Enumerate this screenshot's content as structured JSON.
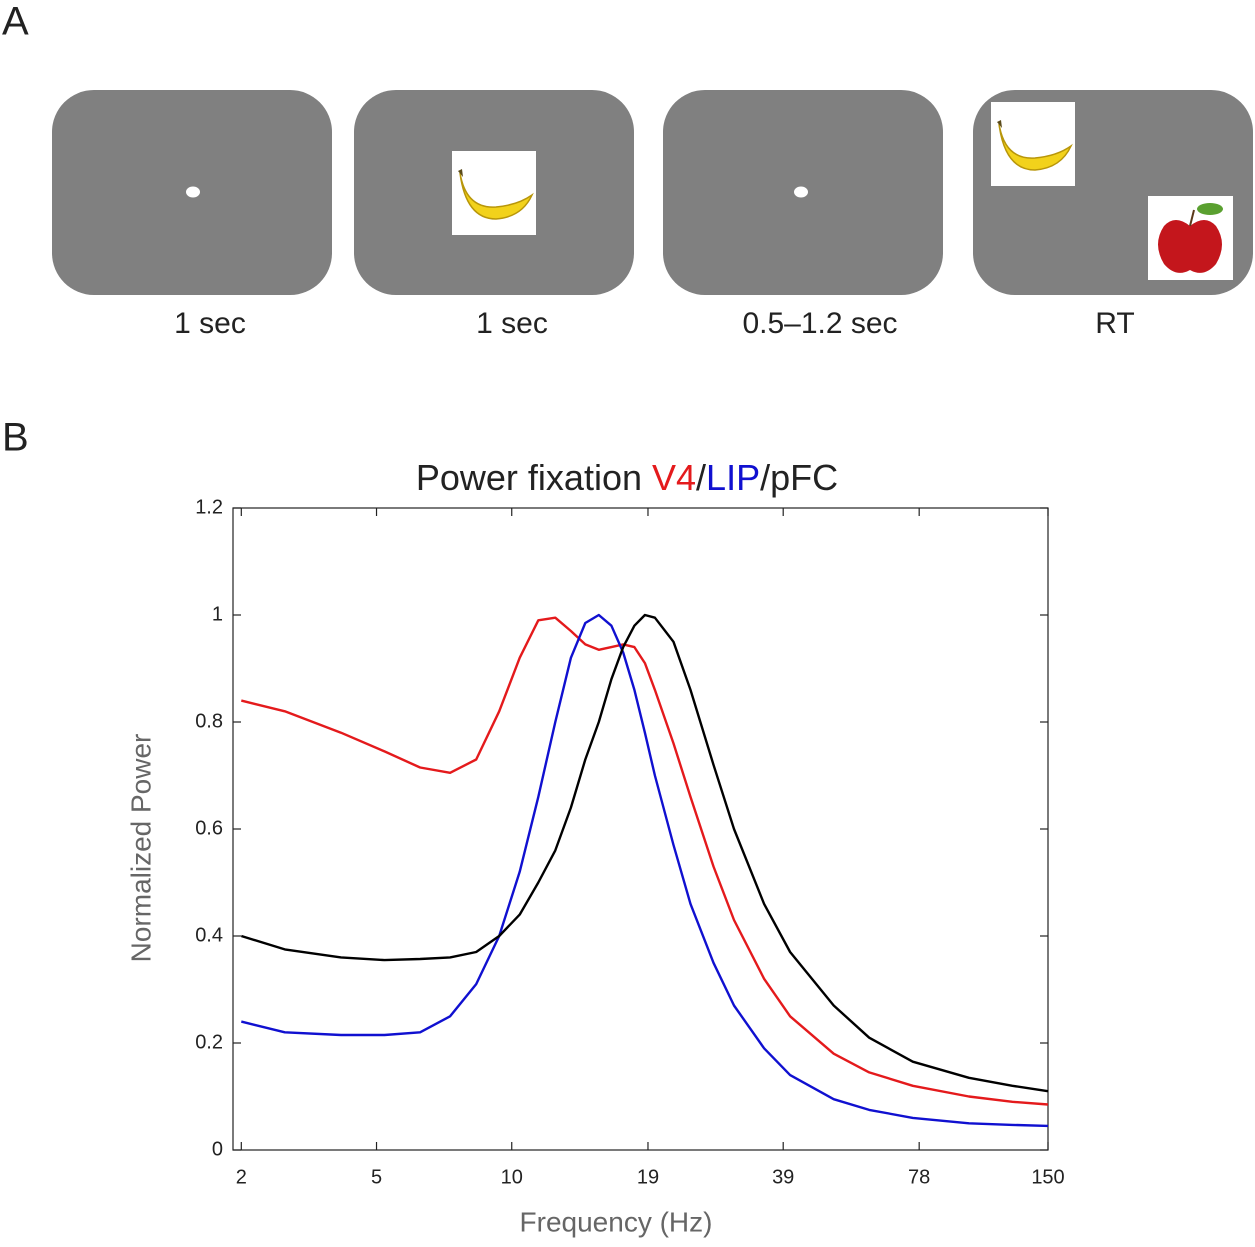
{
  "panel_a": {
    "label": "A",
    "screens": [
      {
        "duration": "1 sec"
      },
      {
        "duration": "1 sec"
      },
      {
        "duration": "0.5–1.2 sec"
      },
      {
        "duration": "RT"
      }
    ]
  },
  "panel_b_label": "B",
  "chart_data": {
    "type": "line",
    "title_parts": [
      {
        "text": "Power fixation",
        "color": "#222222"
      },
      {
        "text": "V4",
        "color": "#e41a1c"
      },
      {
        "text": "/",
        "color": "#222222"
      },
      {
        "text": "LIP",
        "color": "#1010d0"
      },
      {
        "text": "/pFC",
        "color": "#222222"
      }
    ],
    "xlabel": "Frequency (Hz)",
    "ylabel": "Normalized Power",
    "xscale": "log",
    "xlim": [
      2.3,
      150
    ],
    "ylim": [
      0,
      1.2
    ],
    "xticks": [
      {
        "value": 2.4,
        "label": "2"
      },
      {
        "value": 4.8,
        "label": "5"
      },
      {
        "value": 9.6,
        "label": "10"
      },
      {
        "value": 19.3,
        "label": "19"
      },
      {
        "value": 38.6,
        "label": "39"
      },
      {
        "value": 77.5,
        "label": "78"
      },
      150
    ],
    "yticks": [
      0,
      0.2,
      0.4,
      0.6,
      0.8,
      1,
      1.2
    ],
    "x": [
      2.4,
      3,
      4,
      5,
      6,
      7,
      8,
      9,
      10,
      11,
      12,
      13,
      14,
      15,
      16,
      17,
      18,
      19,
      20,
      22,
      24,
      27,
      30,
      35,
      40,
      50,
      60,
      75,
      100,
      125,
      150
    ],
    "series": [
      {
        "color": "#e41a1c",
        "values": [
          0.84,
          0.82,
          0.78,
          0.745,
          0.715,
          0.705,
          0.73,
          0.82,
          0.92,
          0.99,
          0.995,
          0.97,
          0.945,
          0.935,
          0.94,
          0.945,
          0.94,
          0.91,
          0.86,
          0.76,
          0.66,
          0.53,
          0.43,
          0.32,
          0.25,
          0.18,
          0.145,
          0.12,
          0.1,
          0.09,
          0.085
        ]
      },
      {
        "color": "#1010d0",
        "values": [
          0.24,
          0.22,
          0.215,
          0.215,
          0.22,
          0.25,
          0.31,
          0.4,
          0.52,
          0.66,
          0.8,
          0.92,
          0.985,
          1.0,
          0.98,
          0.93,
          0.86,
          0.78,
          0.7,
          0.57,
          0.46,
          0.35,
          0.27,
          0.19,
          0.14,
          0.095,
          0.075,
          0.06,
          0.05,
          0.047,
          0.045
        ]
      },
      {
        "color": "#000000",
        "values": [
          0.4,
          0.375,
          0.36,
          0.355,
          0.357,
          0.36,
          0.37,
          0.4,
          0.44,
          0.5,
          0.56,
          0.64,
          0.73,
          0.8,
          0.88,
          0.94,
          0.98,
          1.0,
          0.995,
          0.95,
          0.86,
          0.72,
          0.6,
          0.46,
          0.37,
          0.27,
          0.21,
          0.165,
          0.135,
          0.12,
          0.11
        ]
      }
    ]
  }
}
